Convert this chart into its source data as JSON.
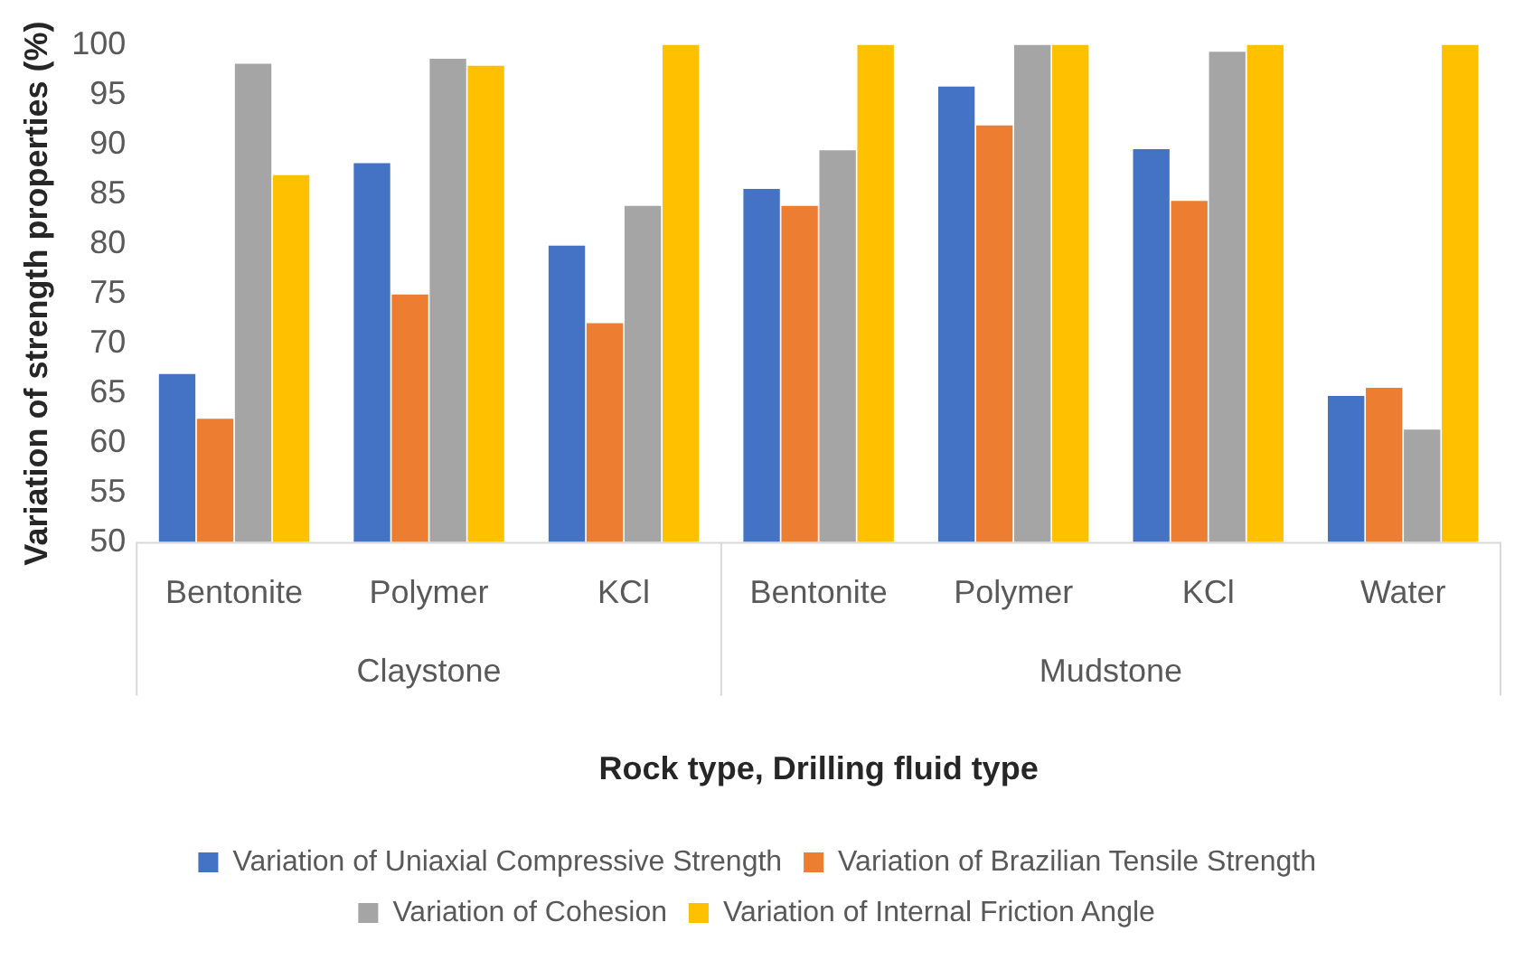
{
  "chart_data": {
    "type": "bar",
    "xlabel": "Rock type, Drilling fluid type",
    "ylabel": "Variation of strength properties (%)",
    "categories": [
      "Bentonite",
      "Polymer",
      "KCl",
      "Bentonite",
      "Polymer",
      "KCl",
      "Water"
    ],
    "annotations": [
      "Claystone",
      "Mudstone"
    ],
    "series": [
      {
        "name": "Variation of Uniaxial Compressive Strength",
        "color": "#4472c4",
        "values": [
          66.9,
          88.1,
          79.8,
          85.5,
          95.8,
          89.5,
          64.7
        ]
      },
      {
        "name": "Variation of Brazilian Tensile Strength",
        "color": "#ed7d31",
        "values": [
          62.4,
          74.9,
          72.0,
          83.8,
          91.9,
          84.3,
          65.5
        ]
      },
      {
        "name": "Variation of Cohesion",
        "color": "#a5a5a5",
        "values": [
          98.1,
          98.6,
          83.8,
          89.4,
          100,
          99.3,
          61.3
        ]
      },
      {
        "name": "Variation of Internal Friction Angle",
        "color": "#ffc000",
        "values": [
          86.9,
          97.9,
          100,
          100,
          100,
          100,
          100
        ]
      }
    ],
    "ylim": [
      50,
      100
    ],
    "yticks": [
      50,
      55,
      60,
      65,
      70,
      75,
      80,
      85,
      90,
      95,
      100
    ],
    "grid": false,
    "legend": "bottom"
  }
}
